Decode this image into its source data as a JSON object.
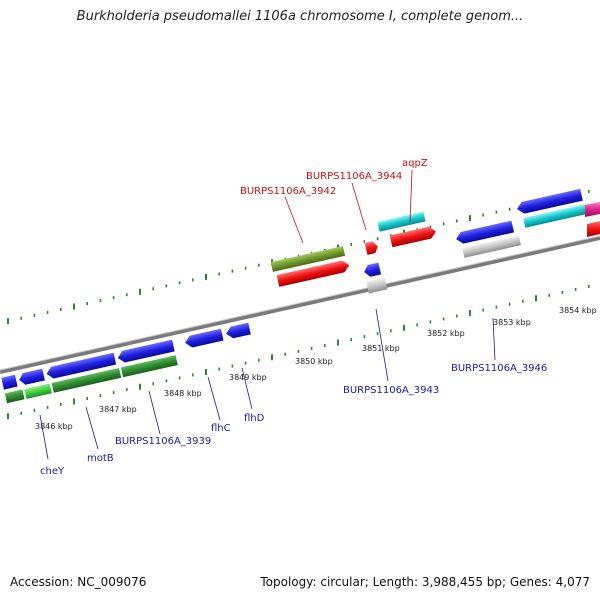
{
  "title": "Burkholderia pseudomallei 1106a chromosome I, complete genom...",
  "footer": {
    "accession": "Accession: NC_009076",
    "summary": "Topology: circular; Length: 3,988,455 bp; Genes: 4,077"
  },
  "kbp_labels": [
    "3846 kbp",
    "3847 kbp",
    "3848 kbp",
    "3849 kbp",
    "3850 kbp",
    "3851 kbp",
    "3852 kbp",
    "3853 kbp",
    "3854 kbp"
  ],
  "gene_labels": {
    "cheY": "cheY",
    "motB": "motB",
    "b3939": "BURPS1106A_3939",
    "flhC": "flhC",
    "flhD": "flhD",
    "b3943": "BURPS1106A_3943",
    "b3946": "BURPS1106A_3946",
    "b3942": "BURPS1106A_3942",
    "b3944": "BURPS1106A_3944",
    "aqpZ": "aqpZ"
  },
  "colors": {
    "blue": "#1f1fe0",
    "green_dark": "#2e8b2e",
    "green_light": "#3ecf3e",
    "olive": "#6f9a2a",
    "red": "#f01010",
    "cyan": "#12c8cc",
    "gray": "#bdbdbd",
    "magenta": "#e0208a",
    "backbone": "#808080",
    "ticks": "#2a8a2a"
  }
}
